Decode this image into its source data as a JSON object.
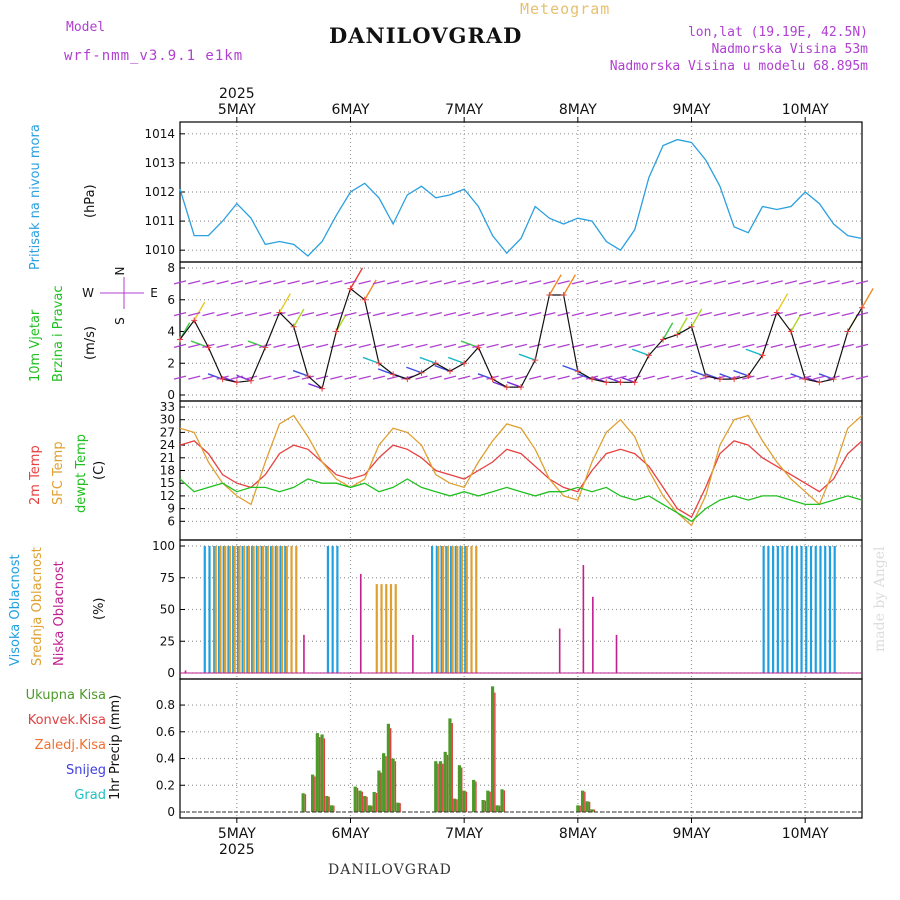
{
  "header": {
    "model_label": "Model",
    "model_name": "wrf-nmm_v3.9.1 e1km",
    "title": "DANILOVGRAD",
    "subtitle": "Meteogram",
    "lonlat": "lon,lat (19.19E, 42.5N)",
    "elevation": "Nadmorska Visina 53m",
    "model_elevation": "Nadmorska Visina u modelu 68.895m",
    "watermark": "made by Angel",
    "footer": "DANILOVGRAD"
  },
  "colors": {
    "pressure": "#2aa0e0",
    "wind": "#111111",
    "temp2m": "#e84040",
    "sfc": "#e0a030",
    "dewpt": "#20c020",
    "high_cloud": "#20a0e0",
    "mid_cloud": "#e0a030",
    "low_cloud": "#c02090",
    "total_precip": "#4c9a2a",
    "conv_precip": "#e04040",
    "frz_precip": "#f07030",
    "snow": "#4040e0",
    "hail": "#20c0c0",
    "purple": "#b040d0"
  },
  "chart_data": [
    {
      "type": "line",
      "panel": "pressure",
      "ylabel_1": "Pritisak na nivou mora",
      "ylabel_unit": "(hPa)",
      "year_label": "2025",
      "x_day_labels": [
        "5MAY",
        "6MAY",
        "7MAY",
        "8MAY",
        "9MAY",
        "10MAY"
      ],
      "xlim_hours": [
        -12,
        132
      ],
      "ylim": [
        1009.8,
        1014.2
      ],
      "yticks": [
        "1010",
        "1011",
        "1012",
        "1013",
        "1014"
      ],
      "x_hours": [
        -12,
        -9,
        -6,
        -3,
        0,
        3,
        6,
        9,
        12,
        15,
        18,
        21,
        24,
        27,
        30,
        33,
        36,
        39,
        42,
        45,
        48,
        51,
        54,
        57,
        60,
        63,
        66,
        69,
        72,
        75,
        78,
        81,
        84,
        87,
        90,
        93,
        96,
        99,
        102,
        105,
        108,
        111,
        114,
        117,
        120,
        123,
        126,
        129,
        132
      ],
      "values": [
        1012.1,
        1010.5,
        1010.5,
        1011.0,
        1011.6,
        1011.1,
        1010.2,
        1010.3,
        1010.2,
        1009.8,
        1010.3,
        1011.2,
        1012.0,
        1012.3,
        1011.8,
        1010.9,
        1011.9,
        1012.2,
        1011.8,
        1011.9,
        1012.1,
        1011.5,
        1010.5,
        1009.9,
        1010.4,
        1011.5,
        1011.1,
        1010.9,
        1011.1,
        1011.0,
        1010.3,
        1010.0,
        1010.7,
        1012.5,
        1013.6,
        1013.8,
        1013.7,
        1013.1,
        1012.2,
        1010.8,
        1010.6,
        1011.5,
        1011.4,
        1011.5,
        1012.0,
        1011.6,
        1010.9,
        1010.5,
        1010.4
      ],
      "grid": true
    },
    {
      "type": "line",
      "panel": "wind",
      "ylabel_1": "10m Vjetar",
      "ylabel_2": "Brzina i Pravac",
      "ylabel_unit": "(m/s)",
      "compass": [
        "N",
        "W",
        "E",
        "S"
      ],
      "ylim": [
        0,
        8
      ],
      "yticks": [
        "0",
        "2",
        "4",
        "6",
        "8"
      ],
      "x_hours": [
        -12,
        -9,
        -6,
        -3,
        0,
        3,
        6,
        9,
        12,
        15,
        18,
        21,
        24,
        27,
        30,
        33,
        36,
        39,
        42,
        45,
        48,
        51,
        54,
        57,
        60,
        63,
        66,
        69,
        72,
        75,
        78,
        81,
        84,
        87,
        90,
        93,
        96,
        99,
        102,
        105,
        108,
        111,
        114,
        117,
        120,
        123,
        126,
        129,
        132
      ],
      "values": [
        3.5,
        4.7,
        3.0,
        1.0,
        0.8,
        0.9,
        3.0,
        5.2,
        4.3,
        1.2,
        0.4,
        4.0,
        6.7,
        6.0,
        2.0,
        1.3,
        1.0,
        1.4,
        2.0,
        1.5,
        2.0,
        3.0,
        1.0,
        0.5,
        0.5,
        2.2,
        6.3,
        6.3,
        1.5,
        1.0,
        0.8,
        0.8,
        0.8,
        2.5,
        3.5,
        3.8,
        4.3,
        1.2,
        1.0,
        1.0,
        1.2,
        2.5,
        5.2,
        4.0,
        1.0,
        0.8,
        1.0,
        4.0,
        5.5
      ],
      "grid": true
    },
    {
      "type": "line",
      "panel": "temperature",
      "ylabel_1": "2m Temp",
      "ylabel_2": "SFC Temp",
      "ylabel_3": "dewpt Temp",
      "ylabel_unit": "(C)",
      "ylim": [
        3,
        33
      ],
      "yticks": [
        "6",
        "9",
        "12",
        "15",
        "18",
        "21",
        "24",
        "27",
        "30",
        "33"
      ],
      "x_hours": [
        -12,
        -9,
        -6,
        -3,
        0,
        3,
        6,
        9,
        12,
        15,
        18,
        21,
        24,
        27,
        30,
        33,
        36,
        39,
        42,
        45,
        48,
        51,
        54,
        57,
        60,
        63,
        66,
        69,
        72,
        75,
        78,
        81,
        84,
        87,
        90,
        93,
        96,
        99,
        102,
        105,
        108,
        111,
        114,
        117,
        120,
        123,
        126,
        129,
        132
      ],
      "series": [
        {
          "name": "2m Temp",
          "values": [
            24,
            25,
            22,
            17,
            15,
            14,
            17,
            22,
            24,
            23,
            20,
            17,
            16,
            17,
            21,
            24,
            23,
            21,
            18,
            17,
            16,
            18,
            20,
            23,
            22,
            19,
            16,
            14,
            13,
            18,
            22,
            23,
            22,
            19,
            14,
            9,
            7,
            14,
            22,
            25,
            24,
            21,
            19,
            17,
            15,
            13,
            16,
            22,
            25
          ]
        },
        {
          "name": "SFC Temp",
          "values": [
            28,
            27,
            20,
            15,
            12,
            10,
            20,
            29,
            31,
            26,
            20,
            16,
            14,
            16,
            24,
            28,
            27,
            24,
            17,
            15,
            14,
            20,
            25,
            29,
            28,
            23,
            16,
            12,
            11,
            20,
            27,
            30,
            26,
            18,
            12,
            8,
            5,
            12,
            24,
            30,
            31,
            25,
            20,
            16,
            13,
            10,
            18,
            28,
            31
          ]
        },
        {
          "name": "dewpt Temp",
          "values": [
            16,
            13,
            14,
            15,
            13,
            14,
            14,
            13,
            14,
            16,
            15,
            15,
            14,
            15,
            13,
            14,
            16,
            14,
            13,
            12,
            13,
            12,
            13,
            14,
            13,
            12,
            13,
            13,
            14,
            13,
            14,
            12,
            11,
            12,
            10,
            8,
            6,
            9,
            11,
            12,
            11,
            12,
            12,
            11,
            10,
            10,
            11,
            12,
            11
          ]
        }
      ],
      "grid": true
    },
    {
      "type": "bar",
      "panel": "clouds",
      "ylabel_1": "Visoka Oblacnost",
      "ylabel_2": "Srednja Oblacnost",
      "ylabel_3": "Niska Oblacnost",
      "ylabel_unit": "(%)",
      "ylim": [
        0,
        100
      ],
      "yticks": [
        "0",
        "25",
        "50",
        "75",
        "100"
      ],
      "high_blocks": [
        {
          "start_hour": -7,
          "end_hour": 10,
          "value": 100
        },
        {
          "start_hour": 19,
          "end_hour": 21,
          "value": 100
        },
        {
          "start_hour": 41,
          "end_hour": 48,
          "value": 100
        },
        {
          "start_hour": 111,
          "end_hour": 126,
          "value": 100
        }
      ],
      "mid_blocks": [
        {
          "start_hour": -5,
          "end_hour": 12,
          "value": 100
        },
        {
          "start_hour": 29,
          "end_hour": 33,
          "value": 70
        },
        {
          "start_hour": 42,
          "end_hour": 50,
          "value": 100
        }
      ],
      "low_spikes": [
        {
          "hour": -11,
          "value": 2
        },
        {
          "hour": 14,
          "value": 30
        },
        {
          "hour": 26,
          "value": 78
        },
        {
          "hour": 37,
          "value": 30
        },
        {
          "hour": 68,
          "value": 35
        },
        {
          "hour": 73,
          "value": 85
        },
        {
          "hour": 75,
          "value": 60
        },
        {
          "hour": 80,
          "value": 30
        }
      ],
      "grid": true
    },
    {
      "type": "bar",
      "panel": "precip",
      "ylabel_1": "1hr Precip (mm)",
      "legend": [
        "Ukupna Kisa",
        "Konvek.Kisa",
        "Zaledj.Kisa",
        "Snijeg",
        "Grad"
      ],
      "ylim": [
        0,
        0.95
      ],
      "yticks": [
        "0",
        "0.2",
        "0.4",
        "0.6",
        "0.8"
      ],
      "x_hours": [
        14,
        16,
        17,
        18,
        19,
        20,
        25,
        26,
        27,
        28,
        29,
        30,
        31,
        32,
        33,
        34,
        42,
        43,
        44,
        45,
        46,
        47,
        48,
        50,
        52,
        53,
        54,
        55,
        56,
        72,
        73,
        74,
        75
      ],
      "values": [
        0.14,
        0.28,
        0.59,
        0.58,
        0.12,
        0.05,
        0.19,
        0.16,
        0.12,
        0.05,
        0.15,
        0.31,
        0.44,
        0.66,
        0.4,
        0.07,
        0.38,
        0.38,
        0.45,
        0.7,
        0.1,
        0.35,
        0.16,
        0.24,
        0.09,
        0.16,
        0.94,
        0.05,
        0.17,
        0.05,
        0.16,
        0.08,
        0.02
      ],
      "grid": true
    }
  ]
}
